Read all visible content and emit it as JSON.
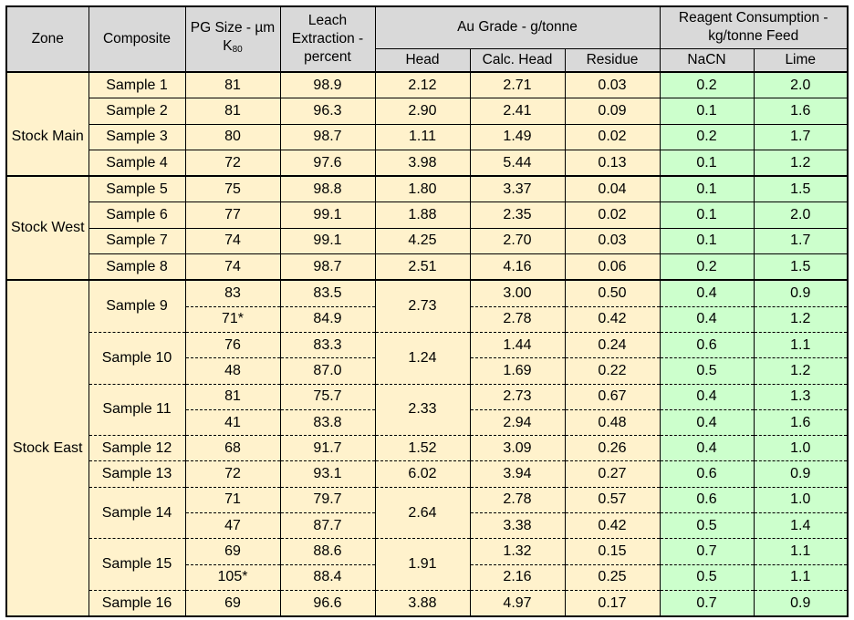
{
  "header": {
    "zone": "Zone",
    "composite": "Composite",
    "pg_size": "PG Size - µm K",
    "pg_size_sub": "80",
    "leach": "Leach Extraction - percent",
    "au_grade": "Au Grade - g/tonne",
    "head": "Head",
    "calc_head": "Calc. Head",
    "residue": "Residue",
    "reagent": "Reagent Consumption - kg/tonne Feed",
    "nacn": "NaCN",
    "lime": "Lime"
  },
  "zones": {
    "stock_main": "Stock Main",
    "stock_west": "Stock West",
    "stock_east": "Stock East"
  },
  "samples": [
    {
      "name": "Sample 1",
      "size": [
        "81"
      ],
      "leach": [
        "98.9"
      ],
      "head": "2.12",
      "calc": [
        "2.71"
      ],
      "residue": [
        "0.03"
      ],
      "nacn": [
        "0.2"
      ],
      "lime": [
        "2.0"
      ]
    },
    {
      "name": "Sample 2",
      "size": [
        "81"
      ],
      "leach": [
        "96.3"
      ],
      "head": "2.90",
      "calc": [
        "2.41"
      ],
      "residue": [
        "0.09"
      ],
      "nacn": [
        "0.1"
      ],
      "lime": [
        "1.6"
      ]
    },
    {
      "name": "Sample 3",
      "size": [
        "80"
      ],
      "leach": [
        "98.7"
      ],
      "head": "1.11",
      "calc": [
        "1.49"
      ],
      "residue": [
        "0.02"
      ],
      "nacn": [
        "0.2"
      ],
      "lime": [
        "1.7"
      ]
    },
    {
      "name": "Sample 4",
      "size": [
        "72"
      ],
      "leach": [
        "97.6"
      ],
      "head": "3.98",
      "calc": [
        "5.44"
      ],
      "residue": [
        "0.13"
      ],
      "nacn": [
        "0.1"
      ],
      "lime": [
        "1.2"
      ]
    },
    {
      "name": "Sample 5",
      "size": [
        "75"
      ],
      "leach": [
        "98.8"
      ],
      "head": "1.80",
      "calc": [
        "3.37"
      ],
      "residue": [
        "0.04"
      ],
      "nacn": [
        "0.1"
      ],
      "lime": [
        "1.5"
      ]
    },
    {
      "name": "Sample 6",
      "size": [
        "77"
      ],
      "leach": [
        "99.1"
      ],
      "head": "1.88",
      "calc": [
        "2.35"
      ],
      "residue": [
        "0.02"
      ],
      "nacn": [
        "0.1"
      ],
      "lime": [
        "2.0"
      ]
    },
    {
      "name": "Sample 7",
      "size": [
        "74"
      ],
      "leach": [
        "99.1"
      ],
      "head": "4.25",
      "calc": [
        "2.70"
      ],
      "residue": [
        "0.03"
      ],
      "nacn": [
        "0.1"
      ],
      "lime": [
        "1.7"
      ]
    },
    {
      "name": "Sample 8",
      "size": [
        "74"
      ],
      "leach": [
        "98.7"
      ],
      "head": "2.51",
      "calc": [
        "4.16"
      ],
      "residue": [
        "0.06"
      ],
      "nacn": [
        "0.2"
      ],
      "lime": [
        "1.5"
      ]
    },
    {
      "name": "Sample 9",
      "size": [
        "83",
        "71*"
      ],
      "leach": [
        "83.5",
        "84.9"
      ],
      "head": "2.73",
      "calc": [
        "3.00",
        "2.78"
      ],
      "residue": [
        "0.50",
        "0.42"
      ],
      "nacn": [
        "0.4",
        "0.4"
      ],
      "lime": [
        "0.9",
        "1.2"
      ]
    },
    {
      "name": "Sample 10",
      "size": [
        "76",
        "48"
      ],
      "leach": [
        "83.3",
        "87.0"
      ],
      "head": "1.24",
      "calc": [
        "1.44",
        "1.69"
      ],
      "residue": [
        "0.24",
        "0.22"
      ],
      "nacn": [
        "0.6",
        "0.5"
      ],
      "lime": [
        "1.1",
        "1.2"
      ]
    },
    {
      "name": "Sample 11",
      "size": [
        "81",
        "41"
      ],
      "leach": [
        "75.7",
        "83.8"
      ],
      "head": "2.33",
      "calc": [
        "2.73",
        "2.94"
      ],
      "residue": [
        "0.67",
        "0.48"
      ],
      "nacn": [
        "0.4",
        "0.4"
      ],
      "lime": [
        "1.3",
        "1.6"
      ]
    },
    {
      "name": "Sample 12",
      "size": [
        "68"
      ],
      "leach": [
        "91.7"
      ],
      "head": "1.52",
      "calc": [
        "3.09"
      ],
      "residue": [
        "0.26"
      ],
      "nacn": [
        "0.4"
      ],
      "lime": [
        "1.0"
      ]
    },
    {
      "name": "Sample 13",
      "size": [
        "72"
      ],
      "leach": [
        "93.1"
      ],
      "head": "6.02",
      "calc": [
        "3.94"
      ],
      "residue": [
        "0.27"
      ],
      "nacn": [
        "0.6"
      ],
      "lime": [
        "0.9"
      ]
    },
    {
      "name": "Sample 14",
      "size": [
        "71",
        "47"
      ],
      "leach": [
        "79.7",
        "87.7"
      ],
      "head": "2.64",
      "calc": [
        "2.78",
        "3.38"
      ],
      "residue": [
        "0.57",
        "0.42"
      ],
      "nacn": [
        "0.6",
        "0.5"
      ],
      "lime": [
        "1.0",
        "1.4"
      ]
    },
    {
      "name": "Sample 15",
      "size": [
        "69",
        "105*"
      ],
      "leach": [
        "88.6",
        "88.4"
      ],
      "head": "1.91",
      "calc": [
        "1.32",
        "2.16"
      ],
      "residue": [
        "0.15",
        "0.25"
      ],
      "nacn": [
        "0.7",
        "0.5"
      ],
      "lime": [
        "1.1",
        "1.1"
      ]
    },
    {
      "name": "Sample 16",
      "size": [
        "69"
      ],
      "leach": [
        "96.6"
      ],
      "head": "3.88",
      "calc": [
        "4.97"
      ],
      "residue": [
        "0.17"
      ],
      "nacn": [
        "0.7"
      ],
      "lime": [
        "0.9"
      ]
    }
  ],
  "colors": {
    "header_bg": "#d9d9d9",
    "data_bg": "#fff2cc",
    "reagent_bg": "#ccffcc"
  }
}
